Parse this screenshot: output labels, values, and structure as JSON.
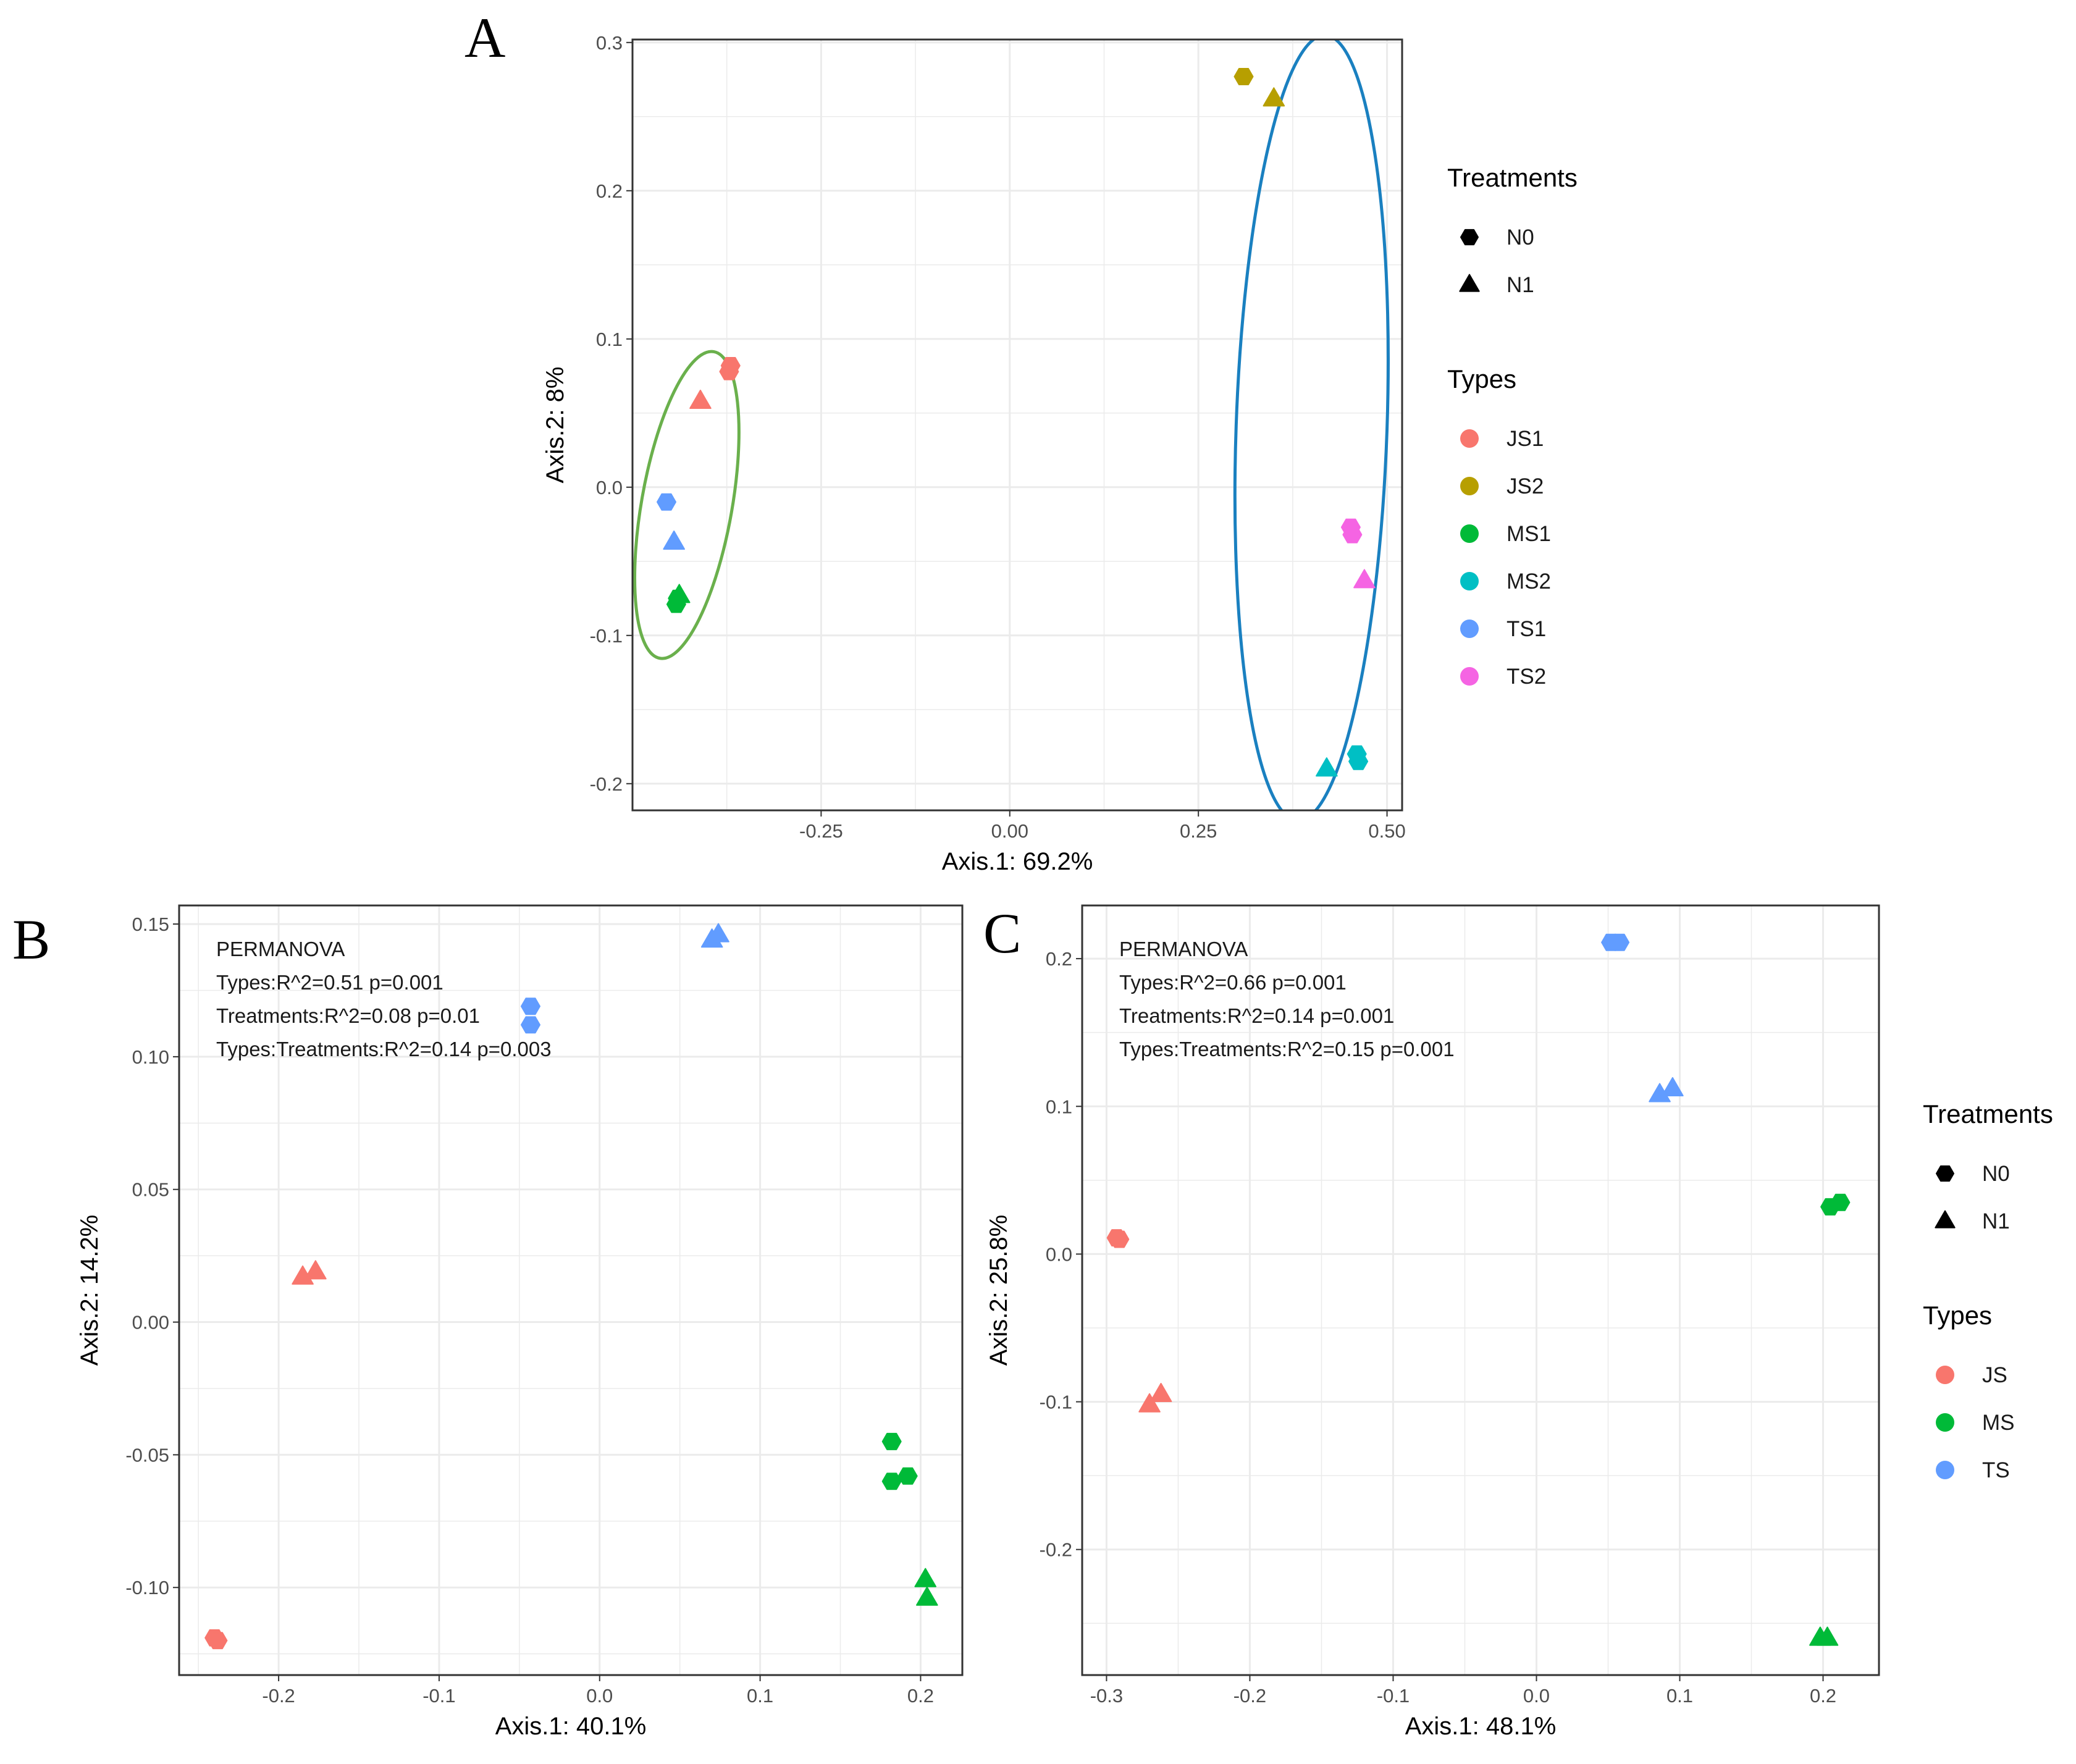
{
  "chart_data": [
    {
      "panel": "A",
      "type": "scatter",
      "title": "",
      "xlabel": "Axis.1: 69.2%",
      "ylabel": "Axis.2: 8%",
      "xlim": [
        -0.5,
        0.52
      ],
      "ylim": [
        -0.218,
        0.302
      ],
      "xticks": [
        -0.25,
        0.0,
        0.25,
        0.5
      ],
      "xtick_labels": [
        "-0.25",
        "0.00",
        "0.25",
        "0.50"
      ],
      "yticks": [
        -0.2,
        -0.1,
        0.0,
        0.1,
        0.2,
        0.3
      ],
      "ytick_labels": [
        "-0.2",
        "-0.1",
        "0.0",
        "0.1",
        "0.2",
        "0.3"
      ],
      "grid": true,
      "legend": {
        "placement": "right",
        "shape_title": "Treatments",
        "shapes": [
          {
            "label": "N0",
            "shape": "hexagon"
          },
          {
            "label": "N1",
            "shape": "triangle"
          }
        ],
        "color_title": "Types",
        "colors": [
          {
            "label": "JS1",
            "color": "#F8766D"
          },
          {
            "label": "JS2",
            "color": "#B79F00"
          },
          {
            "label": "MS1",
            "color": "#00BA38"
          },
          {
            "label": "MS2",
            "color": "#00BFC4"
          },
          {
            "label": "TS1",
            "color": "#619CFF"
          },
          {
            "label": "TS2",
            "color": "#F564E3"
          }
        ]
      },
      "ellipses": [
        {
          "color": "#6ab04c",
          "center": [
            -0.428,
            -0.012
          ],
          "semi_axes": [
            0.06,
            0.105
          ],
          "rotation_deg": 10
        },
        {
          "color": "#1a80c0",
          "center": [
            0.4,
            0.04
          ],
          "semi_axes": [
            0.1,
            0.265
          ],
          "rotation_deg": 2
        }
      ],
      "points": [
        {
          "type": "JS1",
          "treatment": "N0",
          "x": -0.37,
          "y": 0.082
        },
        {
          "type": "JS1",
          "treatment": "N0",
          "x": -0.372,
          "y": 0.078
        },
        {
          "type": "JS1",
          "treatment": "N1",
          "x": -0.41,
          "y": 0.058
        },
        {
          "type": "JS2",
          "treatment": "N0",
          "x": 0.31,
          "y": 0.277
        },
        {
          "type": "JS2",
          "treatment": "N1",
          "x": 0.35,
          "y": 0.262
        },
        {
          "type": "MS1",
          "treatment": "N0",
          "x": -0.44,
          "y": -0.075
        },
        {
          "type": "MS1",
          "treatment": "N0",
          "x": -0.442,
          "y": -0.079
        },
        {
          "type": "MS1",
          "treatment": "N1",
          "x": -0.438,
          "y": -0.073
        },
        {
          "type": "MS2",
          "treatment": "N0",
          "x": 0.46,
          "y": -0.18
        },
        {
          "type": "MS2",
          "treatment": "N0",
          "x": 0.462,
          "y": -0.185
        },
        {
          "type": "MS2",
          "treatment": "N1",
          "x": 0.42,
          "y": -0.19
        },
        {
          "type": "TS1",
          "treatment": "N0",
          "x": -0.455,
          "y": -0.01
        },
        {
          "type": "TS1",
          "treatment": "N1",
          "x": -0.445,
          "y": -0.037
        },
        {
          "type": "TS2",
          "treatment": "N0",
          "x": 0.452,
          "y": -0.027
        },
        {
          "type": "TS2",
          "treatment": "N0",
          "x": 0.454,
          "y": -0.032
        },
        {
          "type": "TS2",
          "treatment": "N1",
          "x": 0.47,
          "y": -0.063
        }
      ]
    },
    {
      "panel": "B",
      "type": "scatter",
      "title": "",
      "xlabel": "Axis.1: 40.1%",
      "ylabel": "Axis.2: 14.2%",
      "xlim": [
        -0.262,
        0.226
      ],
      "ylim": [
        -0.133,
        0.157
      ],
      "xticks": [
        -0.2,
        -0.1,
        0.0,
        0.1,
        0.2
      ],
      "xtick_labels": [
        "-0.2",
        "-0.1",
        "0.0",
        "0.1",
        "0.2"
      ],
      "yticks": [
        -0.1,
        -0.05,
        0.0,
        0.05,
        0.1,
        0.15
      ],
      "ytick_labels": [
        "-0.10",
        "-0.05",
        "0.00",
        "0.05",
        "0.10",
        "0.15"
      ],
      "grid": true,
      "annotation": [
        "PERMANOVA",
        "Types:R^2=0.51 p=0.001",
        "Treatments:R^2=0.08 p=0.01",
        "Types:Treatments:R^2=0.14 p=0.003"
      ],
      "points": [
        {
          "type": "JS",
          "treatment": "N0",
          "x": -0.24,
          "y": -0.119
        },
        {
          "type": "JS",
          "treatment": "N0",
          "x": -0.238,
          "y": -0.12
        },
        {
          "type": "JS",
          "treatment": "N1",
          "x": -0.185,
          "y": 0.017
        },
        {
          "type": "JS",
          "treatment": "N1",
          "x": -0.177,
          "y": 0.019
        },
        {
          "type": "TS",
          "treatment": "N0",
          "x": -0.043,
          "y": 0.119
        },
        {
          "type": "TS",
          "treatment": "N0",
          "x": -0.043,
          "y": 0.112
        },
        {
          "type": "TS",
          "treatment": "N1",
          "x": 0.07,
          "y": 0.144
        },
        {
          "type": "TS",
          "treatment": "N1",
          "x": 0.074,
          "y": 0.146
        },
        {
          "type": "MS",
          "treatment": "N0",
          "x": 0.182,
          "y": -0.045
        },
        {
          "type": "MS",
          "treatment": "N0",
          "x": 0.182,
          "y": -0.06
        },
        {
          "type": "MS",
          "treatment": "N0",
          "x": 0.192,
          "y": -0.058
        },
        {
          "type": "MS",
          "treatment": "N1",
          "x": 0.203,
          "y": -0.097
        },
        {
          "type": "MS",
          "treatment": "N1",
          "x": 0.204,
          "y": -0.104
        }
      ]
    },
    {
      "panel": "C",
      "type": "scatter",
      "title": "",
      "xlabel": "Axis.1: 48.1%",
      "ylabel": "Axis.2: 25.8%",
      "xlim": [
        -0.317,
        0.239
      ],
      "ylim": [
        -0.285,
        0.236
      ],
      "xticks": [
        -0.3,
        -0.2,
        -0.1,
        0.0,
        0.1,
        0.2
      ],
      "xtick_labels": [
        "-0.3",
        "-0.2",
        "-0.1",
        "0.0",
        "0.1",
        "0.2"
      ],
      "yticks": [
        -0.2,
        -0.1,
        0.0,
        0.1,
        0.2
      ],
      "ytick_labels": [
        "-0.2",
        "-0.1",
        "0.0",
        "0.1",
        "0.2"
      ],
      "grid": true,
      "annotation": [
        "PERMANOVA",
        "Types:R^2=0.66 p=0.001",
        "Treatments:R^2=0.14 p=0.001",
        "Types:Treatments:R^2=0.15 p=0.001"
      ],
      "legend": {
        "placement": "right",
        "shape_title": "Treatments",
        "shapes": [
          {
            "label": "N0",
            "shape": "hexagon"
          },
          {
            "label": "N1",
            "shape": "triangle"
          }
        ],
        "color_title": "Types",
        "colors": [
          {
            "label": "JS",
            "color": "#F8766D"
          },
          {
            "label": "MS",
            "color": "#00BA38"
          },
          {
            "label": "TS",
            "color": "#619CFF"
          }
        ]
      },
      "points": [
        {
          "type": "JS",
          "treatment": "N0",
          "x": -0.293,
          "y": 0.011
        },
        {
          "type": "JS",
          "treatment": "N0",
          "x": -0.291,
          "y": 0.01
        },
        {
          "type": "JS",
          "treatment": "N1",
          "x": -0.27,
          "y": -0.102
        },
        {
          "type": "JS",
          "treatment": "N1",
          "x": -0.262,
          "y": -0.095
        },
        {
          "type": "TS",
          "treatment": "N0",
          "x": 0.052,
          "y": 0.211
        },
        {
          "type": "TS",
          "treatment": "N0",
          "x": 0.058,
          "y": 0.211
        },
        {
          "type": "TS",
          "treatment": "N1",
          "x": 0.086,
          "y": 0.108
        },
        {
          "type": "TS",
          "treatment": "N1",
          "x": 0.095,
          "y": 0.112
        },
        {
          "type": "MS",
          "treatment": "N0",
          "x": 0.205,
          "y": 0.032
        },
        {
          "type": "MS",
          "treatment": "N0",
          "x": 0.212,
          "y": 0.035
        },
        {
          "type": "MS",
          "treatment": "N1",
          "x": 0.198,
          "y": -0.26
        },
        {
          "type": "MS",
          "treatment": "N1",
          "x": 0.203,
          "y": -0.26
        }
      ]
    }
  ],
  "type_colors": {
    "JS": "#F8766D",
    "MS": "#00BA38",
    "TS": "#619CFF",
    "JS1": "#F8766D",
    "JS2": "#B79F00",
    "MS1": "#00BA38",
    "MS2": "#00BFC4",
    "TS1": "#619CFF",
    "TS2": "#F564E3"
  },
  "grid_color": "#ebebeb",
  "panel_border_color": "#333333"
}
